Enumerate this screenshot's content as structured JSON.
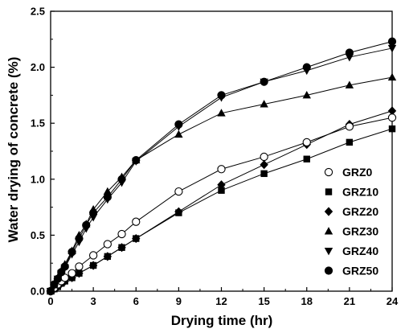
{
  "chart_data": {
    "type": "line",
    "xlabel": "Drying time (hr)",
    "ylabel": "Water drying of concrete (%)",
    "xlim": [
      0,
      24
    ],
    "ylim": [
      0,
      2.5
    ],
    "xticks": [
      0,
      3,
      6,
      9,
      12,
      15,
      18,
      21,
      24
    ],
    "yticks": [
      0.0,
      0.5,
      1.0,
      1.5,
      2.0,
      2.5
    ],
    "xtick_labels": [
      "0",
      "3",
      "6",
      "9",
      "12",
      "15",
      "18",
      "21",
      "24"
    ],
    "ytick_labels": [
      "0.0",
      "0.5",
      "1.0",
      "1.5",
      "2.0",
      "2.5"
    ],
    "grid": false,
    "legend_position": "bottom-right",
    "series": [
      {
        "name": "GRZ0",
        "marker": "circle-open",
        "x": [
          0,
          0.25,
          0.5,
          0.75,
          1,
          1.5,
          2,
          3,
          4,
          5,
          6,
          9,
          12,
          15,
          18,
          21,
          24
        ],
        "y": [
          0,
          0.03,
          0.06,
          0.09,
          0.12,
          0.16,
          0.22,
          0.32,
          0.42,
          0.51,
          0.62,
          0.89,
          1.09,
          1.2,
          1.33,
          1.47,
          1.55
        ]
      },
      {
        "name": "GRZ10",
        "marker": "square",
        "x": [
          0,
          0.25,
          0.5,
          0.75,
          1,
          1.5,
          2,
          3,
          4,
          5,
          6,
          9,
          12,
          15,
          18,
          21,
          24
        ],
        "y": [
          0,
          0.02,
          0.04,
          0.07,
          0.09,
          0.12,
          0.16,
          0.23,
          0.31,
          0.39,
          0.47,
          0.7,
          0.9,
          1.05,
          1.18,
          1.33,
          1.45
        ]
      },
      {
        "name": "GRZ20",
        "marker": "diamond",
        "x": [
          0,
          0.25,
          0.5,
          0.75,
          1,
          1.5,
          2,
          3,
          4,
          5,
          6,
          9,
          12,
          15,
          18,
          21,
          24
        ],
        "y": [
          0,
          0.02,
          0.04,
          0.07,
          0.09,
          0.12,
          0.16,
          0.23,
          0.31,
          0.39,
          0.47,
          0.71,
          0.95,
          1.13,
          1.31,
          1.49,
          1.61
        ]
      },
      {
        "name": "GRZ30",
        "marker": "triangle-up",
        "x": [
          0,
          0.25,
          0.5,
          0.75,
          1,
          1.5,
          2,
          2.5,
          3,
          4,
          5,
          6,
          9,
          12,
          15,
          18,
          21,
          24
        ],
        "y": [
          0,
          0.06,
          0.12,
          0.18,
          0.24,
          0.36,
          0.5,
          0.6,
          0.73,
          0.89,
          1.02,
          1.17,
          1.4,
          1.59,
          1.67,
          1.75,
          1.84,
          1.91
        ]
      },
      {
        "name": "GRZ40",
        "marker": "triangle-down",
        "x": [
          0,
          0.25,
          0.5,
          0.75,
          1,
          1.5,
          2,
          2.5,
          3,
          4,
          5,
          6,
          9,
          12,
          15,
          18,
          21,
          24
        ],
        "y": [
          0,
          0.05,
          0.11,
          0.16,
          0.21,
          0.33,
          0.44,
          0.56,
          0.66,
          0.82,
          0.97,
          1.16,
          1.47,
          1.73,
          1.87,
          1.97,
          2.09,
          2.17
        ]
      },
      {
        "name": "GRZ50",
        "marker": "circle-filled",
        "x": [
          0,
          0.25,
          0.5,
          0.75,
          1,
          1.5,
          2,
          2.5,
          3,
          4,
          5,
          6,
          9,
          12,
          15,
          18,
          21,
          24
        ],
        "y": [
          0,
          0.06,
          0.11,
          0.17,
          0.22,
          0.35,
          0.47,
          0.59,
          0.7,
          0.84,
          1.0,
          1.17,
          1.49,
          1.75,
          1.87,
          2.0,
          2.13,
          2.23
        ]
      }
    ]
  }
}
